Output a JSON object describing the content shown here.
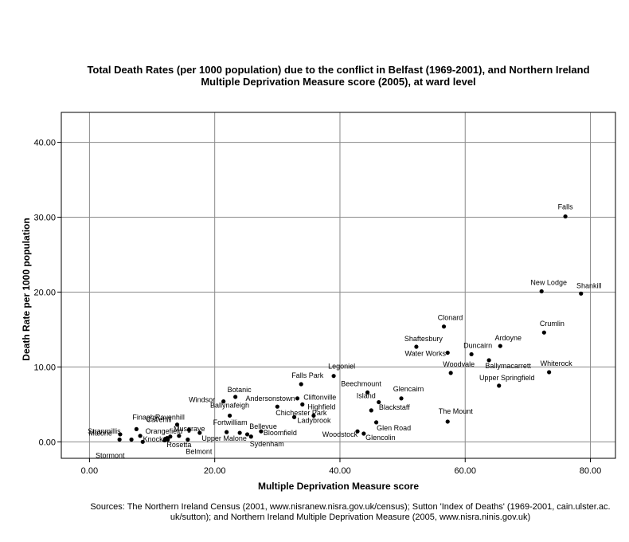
{
  "title_lines": [
    "Total Death Rates (per 1000 population) due to the conflict in Belfast (1969-2001), and Northern Ireland",
    "Multiple Deprivation Measure score (2005), at ward level"
  ],
  "source_lines": [
    "Sources: The Northern Ireland Census (2001, www.nisranew.nisra.gov.uk/census); Sutton 'Index of Deaths' (1969-2001, cain.ulster.ac.",
    "uk/sutton); and Northern Ireland Multiple Deprivation Measure (2005, www.nisra.ninis.gov.uk)"
  ],
  "colors": {
    "grid": "#8a8a8a",
    "point": "#000000",
    "frame": "#000000"
  },
  "chart_data": {
    "type": "scatter",
    "xlabel": "Multiple Deprivation Measure score",
    "ylabel": "Death Rate per 1000 population",
    "xlim": [
      -4.5,
      84.0
    ],
    "ylim": [
      -2.2,
      44.0
    ],
    "xticks": [
      0,
      20,
      40,
      60,
      80
    ],
    "xtick_labels": [
      "0.00",
      "20.00",
      "40.00",
      "60.00",
      "80.00"
    ],
    "yticks": [
      0,
      10,
      20,
      30,
      40
    ],
    "ytick_labels": [
      "0.00",
      "10.00",
      "20.00",
      "30.00",
      "40.00"
    ],
    "grid": true,
    "points": [
      {
        "label": "Falls",
        "x": 76.0,
        "y": 30.1
      },
      {
        "label": "New Lodge",
        "x": 72.2,
        "y": 20.1
      },
      {
        "label": "Shankill",
        "x": 78.5,
        "y": 19.8
      },
      {
        "label": "Clonard",
        "x": 56.6,
        "y": 15.4
      },
      {
        "label": "Crumlin",
        "x": 72.6,
        "y": 14.6
      },
      {
        "label": "Shaftesbury",
        "x": 52.2,
        "y": 12.7
      },
      {
        "label": "Ardoyne",
        "x": 65.6,
        "y": 12.8
      },
      {
        "label": "Water Works",
        "x": 57.2,
        "y": 11.9
      },
      {
        "label": "Duncairn",
        "x": 61.0,
        "y": 11.7
      },
      {
        "label": "Ballymacarrett",
        "x": 63.8,
        "y": 10.9
      },
      {
        "label": "Woodvale",
        "x": 57.7,
        "y": 9.2
      },
      {
        "label": "Whiterock",
        "x": 73.4,
        "y": 9.3
      },
      {
        "label": "Upper Springfield",
        "x": 65.4,
        "y": 7.5
      },
      {
        "label": "Legoniel",
        "x": 39.0,
        "y": 8.8
      },
      {
        "label": "Falls Park",
        "x": 33.8,
        "y": 7.7
      },
      {
        "label": "Beechmount",
        "x": 44.4,
        "y": 6.6
      },
      {
        "label": "Glencairn",
        "x": 49.8,
        "y": 5.8
      },
      {
        "label": "Andersonstown",
        "x": 33.2,
        "y": 5.8
      },
      {
        "label": "Cliftonville",
        "x": 34.0,
        "y": 5.0
      },
      {
        "label": "Island",
        "x": 46.2,
        "y": 5.3
      },
      {
        "label": "Blackstaff",
        "x": 45.0,
        "y": 4.2
      },
      {
        "label": "Chichester Park",
        "x": 30.0,
        "y": 4.7
      },
      {
        "label": "Highfield",
        "x": 35.8,
        "y": 3.5
      },
      {
        "label": "Ladybrook",
        "x": 32.7,
        "y": 3.3
      },
      {
        "label": "The Mount",
        "x": 57.2,
        "y": 2.7
      },
      {
        "label": "Glen Road",
        "x": 45.8,
        "y": 2.6
      },
      {
        "label": "Woodstock",
        "x": 42.8,
        "y": 1.4
      },
      {
        "label": "Glencolin",
        "x": 43.8,
        "y": 1.1
      },
      {
        "label": "Windsor",
        "x": 21.4,
        "y": 5.4
      },
      {
        "label": "Botanic",
        "x": 23.3,
        "y": 6.0
      },
      {
        "label": "Ballynafeigh",
        "x": 22.4,
        "y": 3.5
      },
      {
        "label": "Fortwilliam",
        "x": 24.0,
        "y": 1.2
      },
      {
        "label": "Bellevue",
        "x": 25.2,
        "y": 1.0
      },
      {
        "label": "Sydenham",
        "x": 25.8,
        "y": 0.7
      },
      {
        "label": "Bloomfield",
        "x": 27.4,
        "y": 1.4
      },
      {
        "label": "Upper Malone",
        "x": 21.9,
        "y": 1.3
      },
      {
        "label": "Ravenhill",
        "x": 15.9,
        "y": 1.6
      },
      {
        "label": "Musgrave",
        "x": 17.6,
        "y": 1.2
      },
      {
        "label": "Cavehill",
        "x": 14.0,
        "y": 2.3
      },
      {
        "label": "Belmont",
        "x": 15.7,
        "y": 0.3
      },
      {
        "label": "Rosetta",
        "x": 14.3,
        "y": 0.8
      },
      {
        "label": "Orangefield",
        "x": 12.9,
        "y": 0.7
      },
      {
        "label": "Finaghy",
        "x": 7.5,
        "y": 1.7
      },
      {
        "label": "Stranmillis",
        "x": 4.9,
        "y": 1.0
      },
      {
        "label": "Malone",
        "x": 4.8,
        "y": 0.3
      },
      {
        "label": "Knock",
        "x": 8.1,
        "y": 0.8
      },
      {
        "label": "Stormont",
        "x": 8.5,
        "y": 0.0
      },
      {
        "label": "",
        "x": 6.7,
        "y": 0.3
      },
      {
        "label": "",
        "x": 12.1,
        "y": 0.4
      },
      {
        "label": "",
        "x": 12.4,
        "y": 0.5
      },
      {
        "label": "",
        "x": 12.0,
        "y": 0.2
      },
      {
        "label": "",
        "x": 12.5,
        "y": 0.3
      }
    ]
  }
}
